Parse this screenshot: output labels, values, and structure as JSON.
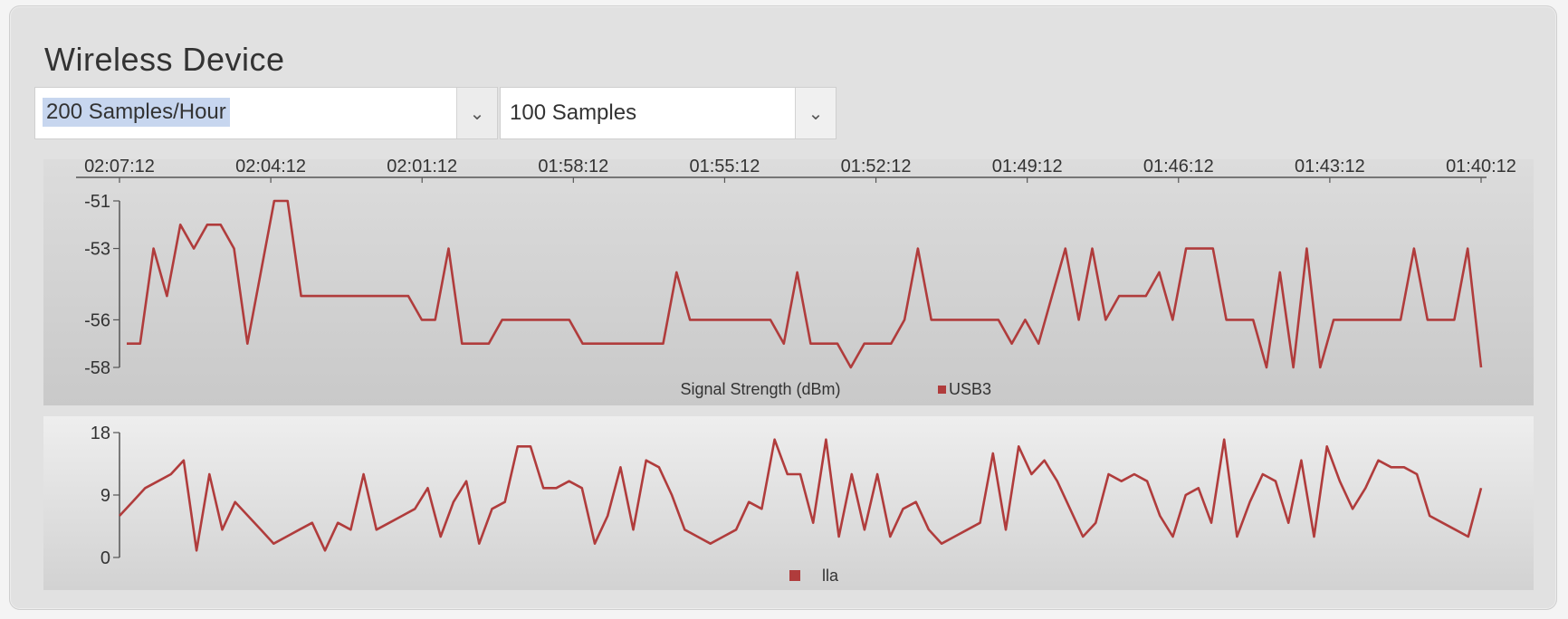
{
  "page": {
    "title": "Wireless Device",
    "rate_select": "200 Samples/Hour",
    "count_select": "100 Samples"
  },
  "colors": {
    "series": "#b03c3c",
    "panel_bg": "#e1e1e1",
    "plot_top": "#d3d3d3",
    "plot_bottom": "#ebebeb"
  },
  "icons": {
    "dropdown": "chevron-down-icon"
  },
  "chart_data": [
    {
      "type": "line",
      "title": "",
      "x_ticks": [
        "02:07:12",
        "02:04:12",
        "02:01:12",
        "01:58:12",
        "01:55:12",
        "01:52:12",
        "01:49:12",
        "01:46:12",
        "01:43:12",
        "01:40:12"
      ],
      "y_ticks": [
        "-51",
        "-53",
        "-56",
        "-58"
      ],
      "ylim": [
        -58,
        -51
      ],
      "xlabel": "",
      "ylabel": "",
      "legend": "Signal Strength (dBm)",
      "series": [
        {
          "name": "USB3",
          "values": [
            -57,
            -57,
            -53,
            -55,
            -52,
            -53,
            -52,
            -52,
            -53,
            -57,
            -54,
            -51,
            -51,
            -55,
            -55,
            -55,
            -55,
            -55,
            -55,
            -55,
            -55,
            -55,
            -56,
            -56,
            -53,
            -57,
            -57,
            -57,
            -56,
            -56,
            -56,
            -56,
            -56,
            -56,
            -57,
            -57,
            -57,
            -57,
            -57,
            -57,
            -57,
            -54,
            -56,
            -56,
            -56,
            -56,
            -56,
            -56,
            -56,
            -57,
            -54,
            -57,
            -57,
            -57,
            -58,
            -57,
            -57,
            -57,
            -56,
            -53,
            -56,
            -56,
            -56,
            -56,
            -56,
            -56,
            -57,
            -56,
            -57,
            -55,
            -53,
            -56,
            -53,
            -56,
            -55,
            -55,
            -55,
            -54,
            -56,
            -53,
            -53,
            -53,
            -56,
            -56,
            -56,
            -58,
            -54,
            -58,
            -53,
            -58,
            -56,
            -56,
            -56,
            -56,
            -56,
            -56,
            -53,
            -56,
            -56,
            -56,
            -53,
            -58
          ]
        }
      ]
    },
    {
      "type": "line",
      "title": "",
      "y_ticks": [
        "18",
        "9",
        "0"
      ],
      "ylim": [
        0,
        18
      ],
      "xlabel": "",
      "ylabel": "",
      "series": [
        {
          "name": "lla",
          "values": [
            6,
            8,
            10,
            11,
            12,
            14,
            1,
            12,
            4,
            8,
            6,
            4,
            2,
            3,
            4,
            5,
            1,
            5,
            4,
            12,
            4,
            5,
            6,
            7,
            10,
            3,
            8,
            11,
            2,
            7,
            8,
            16,
            16,
            10,
            10,
            11,
            10,
            2,
            6,
            13,
            4,
            14,
            13,
            9,
            4,
            3,
            2,
            3,
            4,
            8,
            7,
            17,
            12,
            12,
            5,
            17,
            3,
            12,
            4,
            12,
            3,
            7,
            8,
            4,
            2,
            3,
            4,
            5,
            15,
            4,
            16,
            12,
            14,
            11,
            7,
            3,
            5,
            12,
            11,
            12,
            11,
            6,
            3,
            9,
            10,
            5,
            17,
            3,
            8,
            12,
            11,
            5,
            14,
            3,
            16,
            11,
            7,
            10,
            14,
            13,
            13,
            12,
            6,
            5,
            4,
            3,
            10
          ]
        }
      ]
    }
  ]
}
